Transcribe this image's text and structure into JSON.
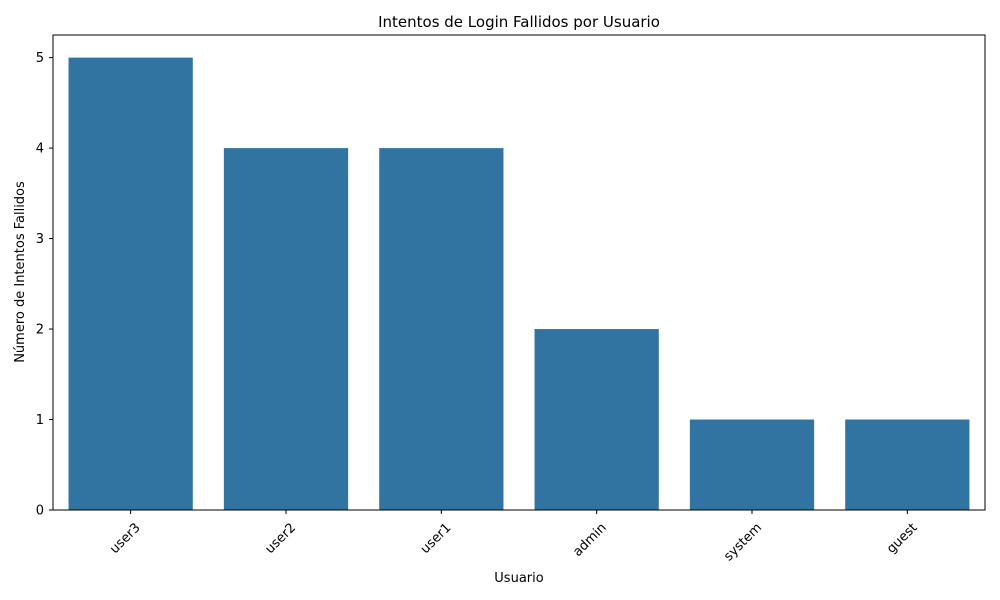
{
  "chart_data": {
    "type": "bar",
    "title": "Intentos de Login Fallidos por Usuario",
    "xlabel": "Usuario",
    "ylabel": "Número de Intentos Fallidos",
    "categories": [
      "user3",
      "user2",
      "user1",
      "admin",
      "system",
      "guest"
    ],
    "values": [
      5,
      4,
      4,
      2,
      1,
      1
    ],
    "ylim": [
      0,
      5.25
    ],
    "yticks": [
      0,
      1,
      2,
      3,
      4,
      5
    ],
    "grid": false,
    "bar_color": "#3274a1",
    "xtick_rotation": 45
  }
}
